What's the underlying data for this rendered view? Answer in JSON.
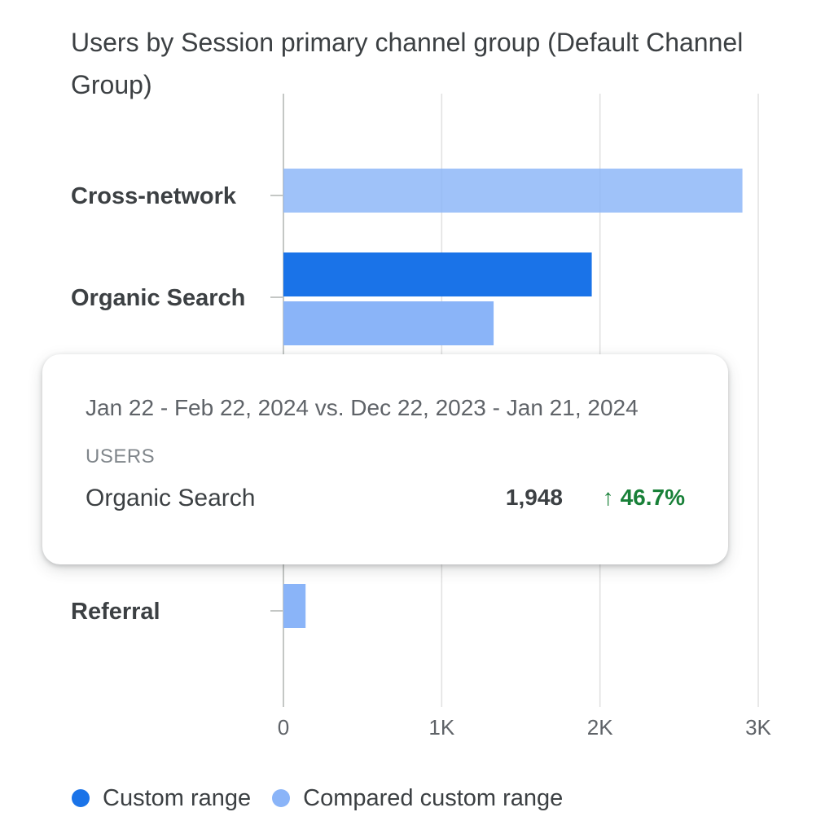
{
  "chart_data": {
    "type": "bar",
    "orientation": "horizontal",
    "title": "Users by Session primary channel group (Default Channel Group)",
    "categories": [
      "Cross-network",
      "Organic Search",
      "",
      "Referral"
    ],
    "series": [
      {
        "name": "Custom range",
        "values": [
          0,
          1948,
          null,
          0
        ],
        "color": "#1a73e8"
      },
      {
        "name": "Compared custom range",
        "values": [
          2900,
          1328,
          null,
          140
        ],
        "color": "#8ab4f8"
      }
    ],
    "xlim": [
      0,
      3000
    ],
    "xticks": [
      "0",
      "1K",
      "2K",
      "3K"
    ],
    "xtick_values": [
      0,
      1000,
      2000,
      3000
    ],
    "grid": true,
    "legend_position": "bottom-left"
  },
  "tooltip": {
    "range": "Jan 22 - Feb 22, 2024 vs. Dec 22, 2023 - Jan 21, 2024",
    "metric": "USERS",
    "channel": "Organic Search",
    "value": "1,948",
    "arrow": "↑",
    "change": "46.7%",
    "change_color": "#188038"
  }
}
